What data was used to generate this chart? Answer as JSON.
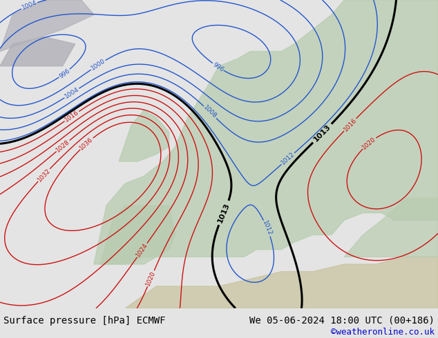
{
  "title_left": "Surface pressure [hPa] ECMWF",
  "title_right": "We 05-06-2024 18:00 UTC (00+186)",
  "copyright": "©weatheronline.co.uk",
  "bg_ocean": "#c8d8e8",
  "bg_land_europe": "#b8ccb0",
  "bg_land_africa": "#c8c4a0",
  "bg_land_grey": "#b0b0b8",
  "bg_bar": "#e4e4e4",
  "text_color": "#000000",
  "copyright_color": "#0000cc",
  "title_fontsize": 10,
  "copyright_fontsize": 9,
  "contour_blue_color": "#2255cc",
  "contour_black_color": "#000000",
  "contour_red_color": "#cc1111",
  "contour_levels_step": 4,
  "contour_min": 980,
  "contour_max": 1036,
  "isobar_1013": 1013
}
